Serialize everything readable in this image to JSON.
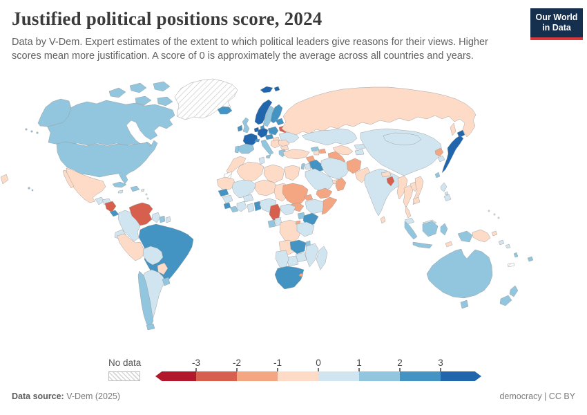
{
  "header": {
    "title": "Justified political positions score, 2024",
    "subtitle_line1": "Data by V-Dem. Expert estimates of the extent to which political leaders give reasons for their views. Higher",
    "subtitle_line2": "scores mean more justification. A score of 0 is approximately the average across all countries and years.",
    "logo": {
      "line1": "Our World",
      "line2": "in Data",
      "bg": "#15304e",
      "accent": "#d7383d"
    }
  },
  "legend": {
    "no_data_label": "No data"
  },
  "footer": {
    "source_label": "Data source:",
    "source_value": " V-Dem (2025)",
    "right_note": "democracy | CC BY"
  },
  "chart_data": {
    "type": "choropleth",
    "title": "Justified political positions score",
    "year": "2024",
    "legend_ticks": [
      "-3",
      "-2",
      "-1",
      "0",
      "1",
      "2",
      "3"
    ],
    "palette": [
      "#b2182b",
      "#d6604d",
      "#f4a582",
      "#fddbc7",
      "#d1e5f0",
      "#92c5de",
      "#4393c3",
      "#2166ac"
    ],
    "bin_labels": [
      "below -3",
      "-3 to -2",
      "-2 to -1",
      "-1 to 0",
      "0 to 1",
      "1 to 2",
      "2 to 3",
      "above 3"
    ],
    "no_data_label": "No data",
    "countries": {
      "alaska": 5,
      "aleutians": 5,
      "hawaii": 5,
      "canada": 5,
      "arctic-islands": 5,
      "greenland": "no_data",
      "usa": 5,
      "mexico": 3,
      "guatemala": 4,
      "honduras": 4,
      "nicaragua": 1,
      "costa-rica": 6,
      "panama": 5,
      "cuba": 5,
      "hispaniola": 5,
      "puerto-rico": 4,
      "jamaica": 4,
      "lesser-antilles": 4,
      "venezuela": 1,
      "colombia": 4,
      "guyana": 4,
      "suriname": 5,
      "french-guiana": 4,
      "ecuador": 4,
      "peru": 3,
      "brazil": 6,
      "bolivia": 4,
      "paraguay": 3,
      "argentina": 4,
      "chile": 5,
      "tierra-del-fuego": 5,
      "uruguay": 5,
      "iceland": 6,
      "svalbard": 7,
      "norway": 7,
      "sweden": 5,
      "finland": 6,
      "denmark": 6,
      "uk": 5,
      "ireland": 6,
      "france": 7,
      "germany": 7,
      "benelux": 7,
      "poland": 6,
      "czechia-austria": 6,
      "switzerland": 6,
      "spain": 5,
      "portugal": 5,
      "italy": 5,
      "hungary": 3,
      "balkans": 3,
      "romania": 3,
      "bulgaria": 3,
      "greece": 5,
      "baltics": 6,
      "belarus": 1,
      "ukraine": 4,
      "russia": 3,
      "sakhalin": 3,
      "russia-wrap": 3,
      "kazakhstan": 4,
      "uzbekistan": 3,
      "turkmenistan": 2,
      "kyrgyzstan": 4,
      "tajikistan": 4,
      "georgia": 5,
      "azerbaijan": 2,
      "armenia": 3,
      "turkey": 3,
      "syria": 2,
      "israel": 5,
      "jordan": 4,
      "iraq": 6,
      "iran": 4,
      "saudi-arabia": 4,
      "uae": 3,
      "oman": 2,
      "yemen": 2,
      "afghanistan": 2,
      "pakistan": 3,
      "india": 4,
      "nepal": 3,
      "bangladesh": 1,
      "sri-lanka": 3,
      "myanmar": 3,
      "thailand": 3,
      "laos": 3,
      "vietnam": 3,
      "cambodia": 3,
      "malaysia": 4,
      "china": 4,
      "mongolia": 4,
      "north-korea": 2,
      "south-korea": 4,
      "japan": 7,
      "taiwan": 5,
      "philippines": 4,
      "indonesia": 5,
      "timor": 3,
      "papua-new-guinea": 3,
      "solomon-islands": 4,
      "vanuatu": 5,
      "fiji": 5,
      "new-caledonia": "no_data",
      "micronesia": 4,
      "australia": 5,
      "tasmania": 5,
      "new-zealand": 5,
      "morocco": 3,
      "western-sahara": "no_data",
      "algeria": 3,
      "tunisia": 4,
      "libya": 3,
      "egypt": 3,
      "mauritania": 3,
      "mali": 4,
      "niger": 3,
      "chad": 3,
      "sudan": 2,
      "south-sudan": 2,
      "eritrea": 2,
      "ethiopia": 4,
      "somalia": 2,
      "senegal": 6,
      "guinea": 4,
      "sierra-leone": 6,
      "liberia": 5,
      "ivory-coast": 4,
      "burkina-faso": 4,
      "ghana": 4,
      "togo-benin": 6,
      "nigeria": 4,
      "cameroon": 1,
      "central-african-republic": 4,
      "gabon": 5,
      "congo": 4,
      "drc": 3,
      "uganda": 5,
      "kenya": 6,
      "rwanda-burundi": 2,
      "tanzania": 4,
      "angola": 3,
      "zambia": 6,
      "malawi": 5,
      "mozambique": 4,
      "zimbabwe": 4,
      "botswana": 4,
      "namibia": 4,
      "south-africa": 6,
      "eswatini": 2,
      "madagascar": 4
    }
  }
}
